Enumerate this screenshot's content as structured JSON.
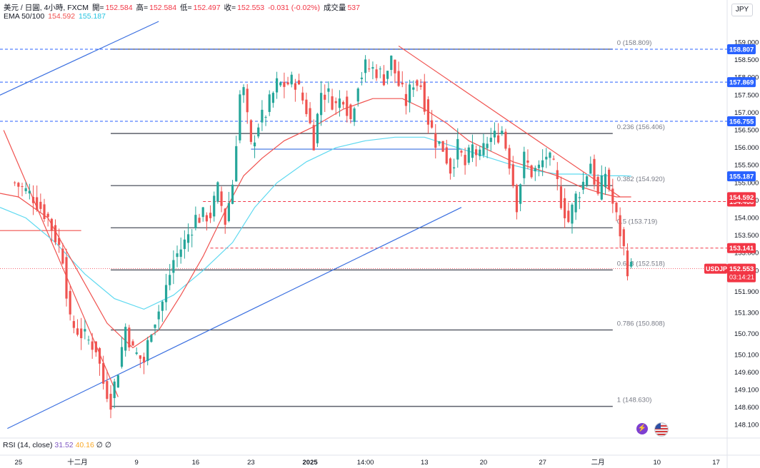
{
  "legend": {
    "line1": {
      "symbol_text": "美元 / 日圓, 4小時, FXCM",
      "open_label": "開=",
      "open": "152.584",
      "high_label": "高=",
      "high": "152.584",
      "low_label": "低=",
      "low": "152.497",
      "close_label": "收=",
      "close": "152.553",
      "change": "-0.031 (-0.02%)",
      "volume_label": "成交量",
      "volume": "537"
    },
    "line2": {
      "ema_label": "EMA 50/100",
      "ema50": "154.592",
      "ema100": "155.187"
    }
  },
  "rsi": {
    "label": "RSI (14, close)",
    "v1": "31.52",
    "v2": "40.16",
    "v3": "∅",
    "v4": "∅"
  },
  "currency_button": "JPY",
  "colors": {
    "up": "#26a69a",
    "down": "#ef5350",
    "ema50": "#f0524f",
    "ema100": "#5ed9f0",
    "trendline_blue": "#3a6fe0",
    "trendline_red": "#f0524f",
    "fib": "#5d606b",
    "dashed_blue": "#2962ff",
    "dashed_red": "#f23645",
    "price_tag": "#f23645",
    "price_blue": "#2962ff"
  },
  "icons": {
    "bolt": "lightning-icon",
    "flag": "us-flag-icon"
  },
  "chart_data": {
    "type": "candlestick",
    "symbol": "USDJPY",
    "interval": "4h",
    "ylim": [
      147.85,
      159.6
    ],
    "y_ticks": [
      "148.100",
      "148.600",
      "149.100",
      "149.600",
      "150.100",
      "150.700",
      "151.300",
      "151.900",
      "152.500",
      "153.000",
      "153.500",
      "154.000",
      "154.500",
      "155.000",
      "155.500",
      "156.000",
      "156.500",
      "157.000",
      "157.500",
      "158.000",
      "158.500",
      "159.000"
    ],
    "x_ticks": [
      "25",
      "十二月",
      "9",
      "16",
      "23",
      "2025",
      "14:00",
      "13",
      "20",
      "27",
      "二月",
      "10",
      "17"
    ],
    "x_tick_index": [
      0,
      16,
      32,
      48,
      63,
      79,
      94,
      110,
      126,
      142,
      157,
      173,
      189
    ],
    "x_range_index": [
      -5,
      192
    ],
    "waypoints": [
      [
        -1,
        155.0
      ],
      [
        4,
        154.6
      ],
      [
        8,
        154.0
      ],
      [
        12,
        152.9
      ],
      [
        14,
        151.0
      ],
      [
        18,
        150.6
      ],
      [
        21,
        150.3
      ],
      [
        23,
        149.3
      ],
      [
        25,
        148.8
      ],
      [
        27,
        149.7
      ],
      [
        29,
        150.9
      ],
      [
        31,
        150.2
      ],
      [
        34,
        149.9
      ],
      [
        36,
        150.9
      ],
      [
        39,
        151.6
      ],
      [
        42,
        152.8
      ],
      [
        45,
        153.3
      ],
      [
        48,
        154.0
      ],
      [
        52,
        154.1
      ],
      [
        54,
        154.8
      ],
      [
        56,
        153.9
      ],
      [
        58,
        155.0
      ],
      [
        60,
        157.5
      ],
      [
        61,
        157.6
      ],
      [
        63,
        156.0
      ],
      [
        65,
        156.7
      ],
      [
        67,
        157.0
      ],
      [
        70,
        157.8
      ],
      [
        72,
        157.8
      ],
      [
        75,
        157.9
      ],
      [
        78,
        157.1
      ],
      [
        80,
        156.2
      ],
      [
        82,
        157.6
      ],
      [
        84,
        157.5
      ],
      [
        86,
        157.2
      ],
      [
        88,
        157.5
      ],
      [
        90,
        156.8
      ],
      [
        92,
        157.9
      ],
      [
        94,
        158.3
      ],
      [
        97,
        158.2
      ],
      [
        99,
        158.0
      ],
      [
        101,
        158.5
      ],
      [
        103,
        157.8
      ],
      [
        105,
        157.3
      ],
      [
        107,
        157.9
      ],
      [
        109,
        157.8
      ],
      [
        111,
        156.8
      ],
      [
        113,
        156.2
      ],
      [
        115,
        156.0
      ],
      [
        117,
        155.4
      ],
      [
        119,
        156.0
      ],
      [
        121,
        155.5
      ],
      [
        123,
        156.0
      ],
      [
        125,
        155.7
      ],
      [
        127,
        156.2
      ],
      [
        129,
        156.3
      ],
      [
        131,
        156.5
      ],
      [
        133,
        155.6
      ],
      [
        135,
        154.4
      ],
      [
        137,
        155.7
      ],
      [
        139,
        155.3
      ],
      [
        141,
        155.4
      ],
      [
        143,
        155.8
      ],
      [
        145,
        155.4
      ],
      [
        147,
        154.5
      ],
      [
        149,
        153.9
      ],
      [
        151,
        154.6
      ],
      [
        153,
        155.0
      ],
      [
        155,
        155.6
      ],
      [
        157,
        154.6
      ],
      [
        159,
        155.3
      ],
      [
        161,
        154.4
      ],
      [
        163,
        153.6
      ],
      [
        165,
        152.6
      ],
      [
        166,
        152.55
      ]
    ],
    "ema50_points": [
      [
        -5,
        154.7
      ],
      [
        0,
        154.6
      ],
      [
        8,
        154.0
      ],
      [
        16,
        152.5
      ],
      [
        24,
        151.0
      ],
      [
        31,
        150.3
      ],
      [
        38,
        150.8
      ],
      [
        44,
        151.8
      ],
      [
        50,
        152.9
      ],
      [
        56,
        154.2
      ],
      [
        61,
        155.2
      ],
      [
        66,
        155.7
      ],
      [
        72,
        156.2
      ],
      [
        80,
        156.6
      ],
      [
        88,
        157.1
      ],
      [
        96,
        157.4
      ],
      [
        104,
        157.4
      ],
      [
        110,
        157.1
      ],
      [
        116,
        156.7
      ],
      [
        122,
        156.2
      ],
      [
        128,
        155.9
      ],
      [
        134,
        155.6
      ],
      [
        140,
        155.4
      ],
      [
        146,
        155.2
      ],
      [
        152,
        154.9
      ],
      [
        158,
        154.7
      ],
      [
        162,
        154.6
      ],
      [
        166,
        154.6
      ]
    ],
    "ema100_points": [
      [
        -5,
        154.3
      ],
      [
        2,
        154.0
      ],
      [
        10,
        153.3
      ],
      [
        18,
        152.4
      ],
      [
        26,
        151.7
      ],
      [
        34,
        151.4
      ],
      [
        42,
        151.8
      ],
      [
        50,
        152.5
      ],
      [
        58,
        153.3
      ],
      [
        64,
        154.3
      ],
      [
        70,
        155.0
      ],
      [
        78,
        155.6
      ],
      [
        86,
        156.0
      ],
      [
        94,
        156.2
      ],
      [
        102,
        156.3
      ],
      [
        110,
        156.3
      ],
      [
        116,
        156.1
      ],
      [
        122,
        155.9
      ],
      [
        128,
        155.7
      ],
      [
        134,
        155.5
      ],
      [
        140,
        155.35
      ],
      [
        146,
        155.25
      ],
      [
        152,
        155.25
      ],
      [
        158,
        155.2
      ],
      [
        164,
        155.2
      ],
      [
        166,
        155.19
      ]
    ],
    "fib_levels": [
      {
        "level": "0",
        "value": 158.809,
        "label": "0 (158.809)"
      },
      {
        "level": "0.236",
        "value": 156.406,
        "label": "0.236 (156.406)"
      },
      {
        "level": "0.382",
        "value": 154.92,
        "label": "0.382 (154.920)"
      },
      {
        "level": "0.5",
        "value": 153.719,
        "label": "0.5 (153.719)"
      },
      {
        "level": "0.618",
        "value": 152.518,
        "label": "0.618 (152.518)"
      },
      {
        "level": "0.786",
        "value": 150.808,
        "label": "0.786 (150.808)"
      },
      {
        "level": "1",
        "value": 148.63,
        "label": "1 (148.630)"
      }
    ],
    "fib_x_range_index": [
      25,
      161
    ],
    "horizontal_lines": [
      {
        "value": 158.807,
        "style": "dashed",
        "color": "blue",
        "tag": "158.807"
      },
      {
        "value": 157.869,
        "style": "dashed",
        "color": "blue",
        "tag": "157.869"
      },
      {
        "value": 156.755,
        "style": "dashed",
        "color": "blue",
        "tag": "156.755"
      },
      {
        "value": 154.468,
        "style": "dashed",
        "color": "red",
        "tag": "154.468",
        "from_index": 50
      },
      {
        "value": 153.141,
        "style": "dashed",
        "color": "red",
        "tag": "153.141",
        "from_index": 52
      }
    ],
    "solid_price_lines": [
      {
        "value": 155.187,
        "tag": "155.187",
        "color": "ema100"
      },
      {
        "value": 154.592,
        "tag": "154.592",
        "color": "ema50"
      }
    ],
    "last_price": {
      "symbol": "USDJPY",
      "value": "152.553",
      "countdown": "03:14:21",
      "y": 152.553
    },
    "trendlines": [
      {
        "color": "blue",
        "from": [
          -5,
          157.5
        ],
        "to": [
          38,
          159.6
        ]
      },
      {
        "color": "blue",
        "from": [
          -3,
          148.0
        ],
        "to": [
          120,
          154.3
        ]
      },
      {
        "color": "blue",
        "from": [
          63,
          155.96
        ],
        "to": [
          120,
          155.96
        ]
      },
      {
        "color": "red",
        "from": [
          -4,
          156.5
        ],
        "to": [
          27,
          148.9
        ]
      },
      {
        "color": "red",
        "from": [
          103,
          158.9
        ],
        "to": [
          163,
          154.6
        ]
      },
      {
        "color": "red",
        "from": [
          -5,
          153.64
        ],
        "to": [
          17,
          153.64
        ]
      }
    ]
  }
}
